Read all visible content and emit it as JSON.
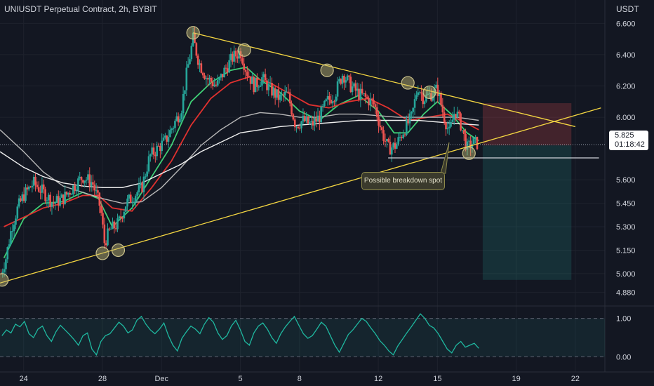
{
  "header": {
    "title": "UNIUSDT Perpetual Contract, 2h, BYBIT",
    "currency": "USDT"
  },
  "price_label": {
    "price": "5.825",
    "countdown": "01:18:42"
  },
  "annotation": {
    "text": "Possible breakdown spot"
  },
  "colors": {
    "background": "#131722",
    "up": "#26a69a",
    "down": "#ef5350",
    "trendline": "#f5d742",
    "ema_fast": "#3fcf76",
    "ema_mid": "#e0312f",
    "ma_slow_1": "#b8b8b8",
    "ma_slow_2": "#f0f0f0",
    "oscillator": "#1fb8a0"
  },
  "chart_data": [
    {
      "type": "candlestick",
      "title": "UNIUSDT Perpetual Contract, 2h, BYBIT",
      "x_ticks": [
        "24",
        "28",
        "Dec",
        "5",
        "8",
        "12",
        "15",
        "19",
        "22"
      ],
      "y_ticks": [
        "6.600",
        "6.400",
        "6.200",
        "6.000",
        "5.825",
        "5.600",
        "5.450",
        "5.300",
        "5.150",
        "5.000",
        "4.880"
      ],
      "y_ticks_values": [
        6.6,
        6.4,
        6.2,
        6.0,
        5.6,
        5.45,
        5.3,
        5.15,
        5.0,
        4.88
      ],
      "x_tick_days": [
        24,
        28,
        31,
        35,
        38,
        42,
        45,
        49,
        52
      ],
      "ylim": [
        4.82,
        6.66
      ],
      "xlim_days": [
        22.8,
        53.5
      ],
      "last_price": 5.825,
      "series": [
        {
          "name": "close_path",
          "values": [
            [
              22.85,
              5.0
            ],
            [
              23.1,
              5.1
            ],
            [
              23.4,
              5.3
            ],
            [
              23.7,
              5.42
            ],
            [
              24.0,
              5.5
            ],
            [
              24.5,
              5.58
            ],
            [
              25.0,
              5.52
            ],
            [
              25.5,
              5.45
            ],
            [
              26.0,
              5.48
            ],
            [
              26.5,
              5.55
            ],
            [
              27.0,
              5.62
            ],
            [
              27.5,
              5.58
            ],
            [
              27.9,
              5.42
            ],
            [
              28.1,
              5.2
            ],
            [
              28.4,
              5.28
            ],
            [
              28.8,
              5.32
            ],
            [
              29.2,
              5.45
            ],
            [
              29.6,
              5.5
            ],
            [
              30.0,
              5.55
            ],
            [
              30.4,
              5.75
            ],
            [
              30.8,
              5.8
            ],
            [
              31.2,
              5.85
            ],
            [
              31.6,
              5.95
            ],
            [
              32.0,
              6.05
            ],
            [
              32.3,
              6.3
            ],
            [
              32.6,
              6.5
            ],
            [
              32.9,
              6.35
            ],
            [
              33.3,
              6.25
            ],
            [
              33.8,
              6.2
            ],
            [
              34.2,
              6.3
            ],
            [
              34.6,
              6.38
            ],
            [
              35.0,
              6.42
            ],
            [
              35.3,
              6.3
            ],
            [
              35.7,
              6.2
            ],
            [
              36.1,
              6.25
            ],
            [
              36.5,
              6.18
            ],
            [
              37.0,
              6.12
            ],
            [
              37.4,
              6.15
            ],
            [
              37.8,
              5.95
            ],
            [
              38.2,
              5.98
            ],
            [
              38.6,
              5.95
            ],
            [
              39.0,
              6.0
            ],
            [
              39.4,
              6.1
            ],
            [
              39.8,
              6.15
            ],
            [
              40.2,
              6.28
            ],
            [
              40.6,
              6.2
            ],
            [
              41.0,
              6.15
            ],
            [
              41.4,
              6.12
            ],
            [
              41.8,
              6.08
            ],
            [
              42.2,
              5.9
            ],
            [
              42.5,
              5.8
            ],
            [
              42.9,
              5.82
            ],
            [
              43.3,
              5.92
            ],
            [
              43.7,
              6.0
            ],
            [
              44.0,
              6.2
            ],
            [
              44.3,
              6.12
            ],
            [
              44.7,
              6.15
            ],
            [
              45.0,
              6.18
            ],
            [
              45.3,
              6.02
            ],
            [
              45.6,
              5.9
            ],
            [
              45.9,
              6.05
            ],
            [
              46.2,
              5.95
            ],
            [
              46.5,
              5.8
            ],
            [
              46.8,
              5.84
            ],
            [
              47.1,
              5.83
            ]
          ]
        },
        {
          "name": "ema_fast",
          "values": [
            [
              23.0,
              5.1
            ],
            [
              24.0,
              5.35
            ],
            [
              25.0,
              5.45
            ],
            [
              26.0,
              5.46
            ],
            [
              27.0,
              5.52
            ],
            [
              27.8,
              5.48
            ],
            [
              28.5,
              5.3
            ],
            [
              29.5,
              5.42
            ],
            [
              30.5,
              5.62
            ],
            [
              31.5,
              5.82
            ],
            [
              32.5,
              6.1
            ],
            [
              33.5,
              6.22
            ],
            [
              34.5,
              6.3
            ],
            [
              35.3,
              6.32
            ],
            [
              36.0,
              6.24
            ],
            [
              37.0,
              6.16
            ],
            [
              38.0,
              6.04
            ],
            [
              39.0,
              5.98
            ],
            [
              40.0,
              6.08
            ],
            [
              41.0,
              6.14
            ],
            [
              42.0,
              6.04
            ],
            [
              42.8,
              5.9
            ],
            [
              43.5,
              5.9
            ],
            [
              44.3,
              6.02
            ],
            [
              45.0,
              6.1
            ],
            [
              45.7,
              6.02
            ],
            [
              46.5,
              5.9
            ],
            [
              47.1,
              5.85
            ]
          ]
        },
        {
          "name": "ema_mid",
          "values": [
            [
              23.0,
              5.3
            ],
            [
              24.0,
              5.36
            ],
            [
              25.0,
              5.42
            ],
            [
              26.0,
              5.45
            ],
            [
              27.0,
              5.5
            ],
            [
              27.8,
              5.5
            ],
            [
              28.5,
              5.42
            ],
            [
              29.5,
              5.4
            ],
            [
              30.5,
              5.55
            ],
            [
              31.5,
              5.72
            ],
            [
              32.5,
              5.95
            ],
            [
              33.5,
              6.12
            ],
            [
              34.5,
              6.22
            ],
            [
              35.5,
              6.26
            ],
            [
              36.5,
              6.22
            ],
            [
              37.5,
              6.15
            ],
            [
              38.5,
              6.08
            ],
            [
              39.5,
              6.06
            ],
            [
              40.5,
              6.1
            ],
            [
              41.5,
              6.12
            ],
            [
              42.5,
              6.06
            ],
            [
              43.5,
              5.98
            ],
            [
              44.5,
              6.0
            ],
            [
              45.5,
              6.02
            ],
            [
              46.5,
              5.96
            ],
            [
              47.1,
              5.92
            ]
          ]
        },
        {
          "name": "ma_slow_1",
          "values": [
            [
              22.8,
              5.92
            ],
            [
              24.0,
              5.78
            ],
            [
              25.0,
              5.65
            ],
            [
              26.0,
              5.56
            ],
            [
              27.0,
              5.52
            ],
            [
              28.0,
              5.48
            ],
            [
              29.0,
              5.45
            ],
            [
              30.0,
              5.46
            ],
            [
              31.0,
              5.55
            ],
            [
              32.0,
              5.68
            ],
            [
              33.0,
              5.82
            ],
            [
              34.0,
              5.92
            ],
            [
              35.0,
              6.0
            ],
            [
              36.0,
              6.03
            ],
            [
              37.0,
              6.02
            ],
            [
              38.0,
              6.0
            ],
            [
              39.0,
              6.0
            ],
            [
              40.0,
              6.02
            ],
            [
              41.0,
              6.02
            ],
            [
              42.0,
              6.01
            ],
            [
              43.0,
              6.0
            ],
            [
              44.0,
              6.0
            ],
            [
              45.0,
              6.0
            ],
            [
              46.0,
              6.0
            ],
            [
              47.1,
              5.98
            ]
          ]
        },
        {
          "name": "ma_slow_2",
          "values": [
            [
              22.8,
              5.78
            ],
            [
              24.0,
              5.68
            ],
            [
              25.0,
              5.62
            ],
            [
              26.0,
              5.58
            ],
            [
              27.0,
              5.56
            ],
            [
              28.0,
              5.55
            ],
            [
              29.0,
              5.55
            ],
            [
              30.0,
              5.58
            ],
            [
              31.0,
              5.64
            ],
            [
              32.0,
              5.7
            ],
            [
              33.0,
              5.78
            ],
            [
              34.0,
              5.84
            ],
            [
              35.0,
              5.9
            ],
            [
              36.0,
              5.92
            ],
            [
              37.0,
              5.94
            ],
            [
              38.0,
              5.95
            ],
            [
              39.0,
              5.96
            ],
            [
              40.0,
              5.97
            ],
            [
              41.0,
              5.98
            ],
            [
              42.0,
              5.98
            ],
            [
              43.0,
              5.98
            ],
            [
              44.0,
              5.98
            ],
            [
              45.0,
              5.97
            ],
            [
              46.0,
              5.96
            ],
            [
              47.1,
              5.95
            ]
          ]
        }
      ],
      "trendlines": [
        {
          "name": "upper_resistance",
          "from": [
            32.6,
            6.54
          ],
          "to": [
            52.0,
            5.94
          ]
        },
        {
          "name": "lower_support",
          "from": [
            22.8,
            4.94
          ],
          "to": [
            53.3,
            6.06
          ]
        },
        {
          "name": "horizontal_support",
          "from": [
            42.5,
            5.74
          ],
          "to": [
            53.2,
            5.74
          ]
        }
      ],
      "touch_points": [
        [
          22.9,
          4.96
        ],
        [
          28.0,
          5.13
        ],
        [
          28.8,
          5.15
        ],
        [
          32.6,
          6.54
        ],
        [
          35.2,
          6.43
        ],
        [
          39.4,
          6.3
        ],
        [
          43.5,
          6.22
        ],
        [
          44.6,
          6.16
        ],
        [
          46.6,
          5.77
        ]
      ],
      "position_box": {
        "x_start": 47.3,
        "x_end": 51.8,
        "entry": 5.82,
        "stop": 6.09,
        "target": 4.96
      },
      "oscillator": {
        "ylim": [
          -0.25,
          1.25
        ],
        "y_ticks": [
          "1.00",
          "0.00"
        ],
        "y_ticks_values": [
          1.0,
          0.0
        ],
        "values": [
          0.55,
          0.7,
          0.62,
          0.85,
          0.78,
          0.92,
          0.6,
          0.5,
          0.72,
          0.8,
          0.55,
          0.4,
          0.65,
          0.82,
          0.7,
          0.58,
          0.45,
          0.3,
          0.55,
          0.62,
          0.2,
          0.05,
          0.4,
          0.55,
          0.6,
          0.75,
          0.9,
          0.8,
          0.62,
          0.7,
          0.95,
          1.05,
          0.85,
          0.7,
          0.6,
          0.72,
          0.88,
          0.55,
          0.3,
          0.15,
          0.48,
          0.65,
          0.8,
          0.72,
          0.6,
          0.85,
          1.02,
          0.9,
          0.62,
          0.45,
          0.55,
          0.8,
          0.95,
          0.7,
          0.4,
          0.3,
          0.62,
          0.8,
          0.88,
          0.72,
          0.5,
          0.35,
          0.6,
          0.78,
          0.92,
          1.05,
          0.82,
          0.6,
          0.48,
          0.55,
          0.72,
          0.9,
          0.8,
          0.55,
          0.3,
          0.12,
          0.35,
          0.58,
          0.7,
          0.85,
          1.0,
          0.92,
          0.75,
          0.6,
          0.42,
          0.3,
          0.15,
          0.05,
          0.28,
          0.45,
          0.62,
          0.78,
          0.95,
          1.12,
          1.0,
          0.82,
          0.75,
          0.6,
          0.4,
          0.2,
          0.1,
          0.3,
          0.4,
          0.25,
          0.3,
          0.35,
          0.22
        ]
      }
    }
  ]
}
